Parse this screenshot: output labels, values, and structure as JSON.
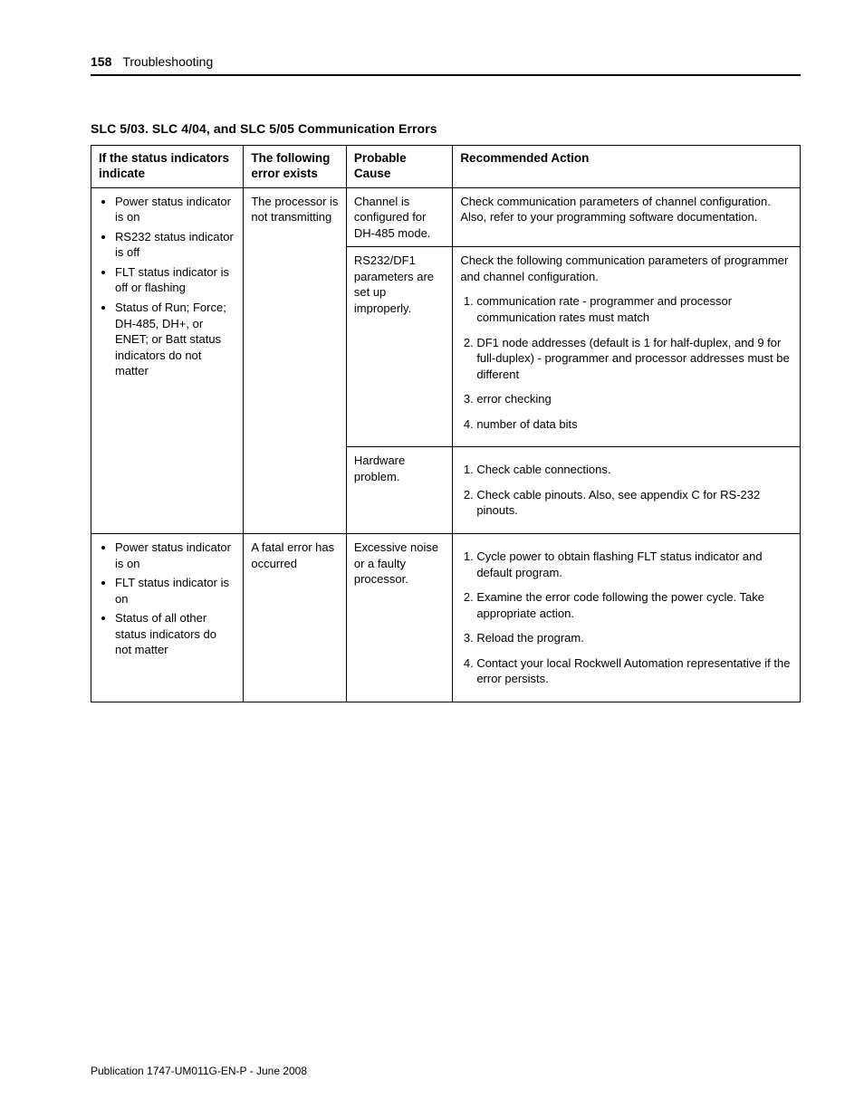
{
  "header": {
    "page_number": "158",
    "section": "Troubleshooting"
  },
  "table": {
    "title": "SLC 5/03. SLC 4/04, and SLC 5/05 Communication Errors",
    "col_widths": [
      "21.5%",
      "14.5%",
      "15%",
      "49%"
    ],
    "headers": {
      "col1_l1": "If the status indicators",
      "col1_l2": "indicate",
      "col2_l1": "The following",
      "col2_l2": "error exists",
      "col3": "Probable Cause",
      "col4": "Recommended Action"
    },
    "row1": {
      "indicators": {
        "i1": "Power status indicator is on",
        "i2": "RS232 status indicator is off",
        "i3": "FLT status indicator is off or flashing",
        "i4": "Status of Run; Force; DH-485, DH+, or ENET; or Batt status indicators do not matter"
      },
      "error": "The processor is not transmitting",
      "cause_a": "Channel is configured for DH-485 mode.",
      "action_a": "Check communication parameters of channel configuration. Also, refer to your programming software documentation.",
      "cause_b": "RS232/DF1 parameters are set up improperly.",
      "action_b_intro": "Check the following communication parameters of programmer and channel configuration.",
      "action_b_1": "communication rate - programmer and processor communication rates must match",
      "action_b_2": "DF1 node addresses (default is 1 for half-duplex, and 9 for full-duplex) - programmer and processor addresses must be different",
      "action_b_3": "error checking",
      "action_b_4": "number of data bits",
      "cause_c": "Hardware problem.",
      "action_c_1": "Check cable connections.",
      "action_c_2": "Check cable pinouts. Also, see appendix C for RS-232 pinouts."
    },
    "row2": {
      "indicators": {
        "i1": "Power status indicator is on",
        "i2": "FLT status indicator is on",
        "i3": "Status of all other status indicators do not matter"
      },
      "error": "A fatal error has occurred",
      "cause": "Excessive noise or a faulty processor.",
      "action_1": "Cycle power to obtain flashing FLT status indicator and default program.",
      "action_2": "Examine the error code following the power cycle. Take appropriate action.",
      "action_3": "Reload the program.",
      "action_4": "Contact your local Rockwell Automation representative if the error persists."
    }
  },
  "footer": {
    "text": "Publication 1747-UM011G-EN-P - June 2008"
  }
}
